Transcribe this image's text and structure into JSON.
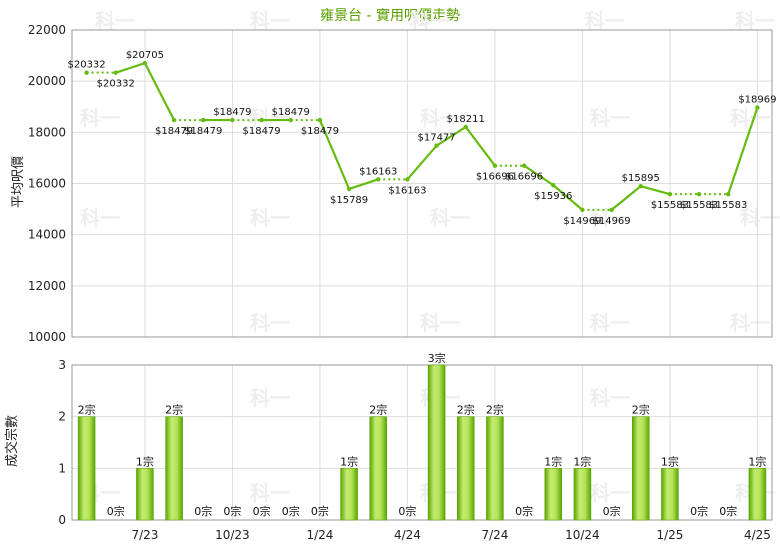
{
  "title": "雍景台 - 實用呎價走勢",
  "watermark": "科一",
  "colors": {
    "line": "#66bb10",
    "bar_light": "#b5e35a",
    "bar_dark": "#5aa600",
    "grid": "#dddddd",
    "axis": "#999999"
  },
  "chart_data": [
    {
      "type": "line",
      "ylabel": "平均呎價",
      "ylim": [
        10000,
        22000
      ],
      "yticks": [
        10000,
        12000,
        14000,
        16000,
        18000,
        20000,
        22000
      ],
      "grid": true,
      "x": [
        "2023-05",
        "2023-06",
        "2023-07",
        "2023-08",
        "2023-09",
        "2023-10",
        "2023-11",
        "2023-12",
        "2024-01",
        "2024-02",
        "2024-03",
        "2024-04",
        "2024-05",
        "2024-06",
        "2024-07",
        "2024-08",
        "2024-09",
        "2024-10",
        "2024-11",
        "2024-12",
        "2025-01",
        "2025-02",
        "2025-03",
        "2025-04"
      ],
      "values": [
        20332,
        20332,
        20705,
        18479,
        18479,
        18479,
        18479,
        18479,
        18479,
        15789,
        16163,
        16163,
        17477,
        18211,
        16696,
        16696,
        15936,
        14969,
        14969,
        15895,
        15583,
        15583,
        15583,
        18969
      ],
      "carried": [
        false,
        true,
        false,
        false,
        true,
        false,
        true,
        false,
        true,
        false,
        false,
        true,
        false,
        false,
        false,
        true,
        false,
        false,
        true,
        false,
        false,
        true,
        true,
        false
      ],
      "labels": [
        "$20332",
        "$20332",
        "$20705",
        "$18479",
        "$18479",
        "$18479",
        "$18479",
        "$18479",
        "$18479",
        "$15789",
        "$16163",
        "$16163",
        "$17477",
        "$18211",
        "$16696",
        "$16696",
        "$15936",
        "$14969",
        "$14969",
        "$15895",
        "$15583",
        "$15583",
        "$15583",
        "$18969"
      ]
    },
    {
      "type": "bar",
      "ylabel": "成交宗數",
      "ylim": [
        0,
        3
      ],
      "yticks": [
        0,
        1,
        2,
        3
      ],
      "grid": true,
      "categories": [
        "2023-05",
        "2023-06",
        "2023-07",
        "2023-08",
        "2023-09",
        "2023-10",
        "2023-11",
        "2023-12",
        "2024-01",
        "2024-02",
        "2024-03",
        "2024-04",
        "2024-05",
        "2024-06",
        "2024-07",
        "2024-08",
        "2024-09",
        "2024-10",
        "2024-11",
        "2024-12",
        "2025-01",
        "2025-02",
        "2025-03",
        "2025-04"
      ],
      "values": [
        2,
        0,
        1,
        2,
        0,
        0,
        0,
        0,
        0,
        1,
        2,
        0,
        3,
        2,
        2,
        0,
        1,
        1,
        0,
        2,
        1,
        0,
        0,
        1
      ],
      "labels": [
        "2宗",
        "0宗",
        "1宗",
        "2宗",
        "0宗",
        "0宗",
        "0宗",
        "0宗",
        "0宗",
        "1宗",
        "2宗",
        "0宗",
        "3宗",
        "2宗",
        "2宗",
        "0宗",
        "1宗",
        "1宗",
        "0宗",
        "2宗",
        "1宗",
        "0宗",
        "0宗",
        "1宗"
      ]
    }
  ],
  "x_tick_labels": [
    {
      "index": 2,
      "label": "7/23"
    },
    {
      "index": 5,
      "label": "10/23"
    },
    {
      "index": 8,
      "label": "1/24"
    },
    {
      "index": 11,
      "label": "4/24"
    },
    {
      "index": 14,
      "label": "7/24"
    },
    {
      "index": 17,
      "label": "10/24"
    },
    {
      "index": 20,
      "label": "1/25"
    },
    {
      "index": 23,
      "label": "4/25"
    }
  ]
}
